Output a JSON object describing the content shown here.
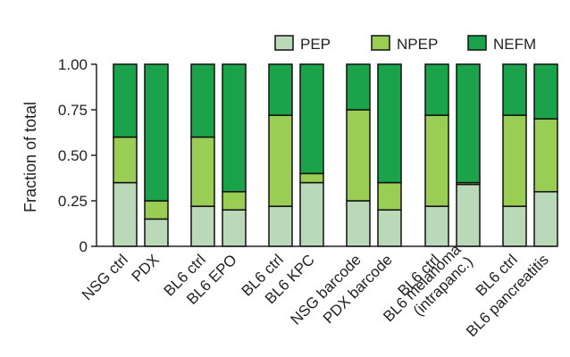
{
  "chart_data": {
    "type": "bar",
    "stacked": true,
    "ylabel": "Fraction of total",
    "ylim": [
      0,
      1
    ],
    "yticks": [
      "0",
      "0.25",
      "0.50",
      "0.75",
      "1.00"
    ],
    "ytick_values": [
      0,
      0.25,
      0.5,
      0.75,
      1.0
    ],
    "legend_placement": "top-right",
    "categories": [
      "NSG ctrl",
      "PDX",
      "BL6 ctrl",
      "BL6 EPO",
      "BL6 ctrl",
      "BL6 KPC",
      "NSG barcode",
      "PDX barcode",
      "BL6 ctrl",
      "BL6 melanoma\n(intrapanc.)",
      "BL6 ctrl",
      "BL6 pancreatitis"
    ],
    "series": [
      {
        "name": "PEP",
        "color": "#b9d9b9",
        "values": [
          0.35,
          0.15,
          0.22,
          0.2,
          0.22,
          0.35,
          0.25,
          0.2,
          0.22,
          0.34,
          0.22,
          0.3
        ]
      },
      {
        "name": "NPEP",
        "color": "#9acd54",
        "values": [
          0.25,
          0.1,
          0.38,
          0.1,
          0.5,
          0.05,
          0.5,
          0.15,
          0.5,
          0.01,
          0.5,
          0.4
        ]
      },
      {
        "name": "NEFM",
        "color": "#1aa34a",
        "values": [
          0.4,
          0.75,
          0.4,
          0.7,
          0.28,
          0.6,
          0.25,
          0.65,
          0.28,
          0.65,
          0.28,
          0.3
        ]
      }
    ]
  }
}
